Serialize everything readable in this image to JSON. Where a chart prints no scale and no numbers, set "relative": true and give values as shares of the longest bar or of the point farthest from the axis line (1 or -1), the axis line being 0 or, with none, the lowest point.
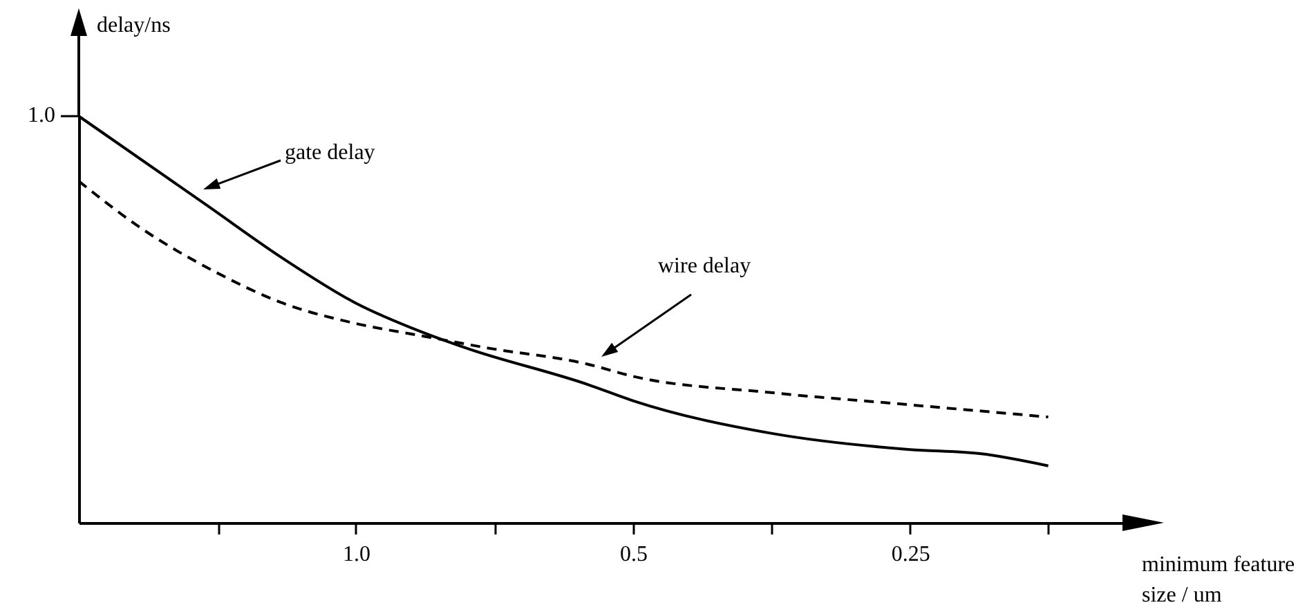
{
  "chart_data": {
    "type": "line",
    "xlabel": "minimum feature size / um",
    "ylabel": "delay/ns",
    "log": "x",
    "relative": true,
    "xlim": [
      2.0,
      0.146
    ],
    "xticks": [
      {
        "value": 1.41,
        "label": null
      },
      {
        "value": 1,
        "label": "1.0"
      },
      {
        "value": 0.707,
        "label": null
      },
      0.5,
      {
        "value": 0.354,
        "label": null
      },
      0.25,
      {
        "value": 0.177,
        "label": null
      }
    ],
    "series": [
      {
        "color": "#000000",
        "line_style": "solid",
        "x": [
          2.0,
          1.45,
          1.2,
          1.0,
          0.85,
          0.76,
          0.56,
          0.5,
          0.354,
          0.25,
          0.21,
          0.177
        ],
        "values": [
          1.0,
          0.78,
          0.65,
          0.54,
          0.47,
          0.43,
          0.34,
          0.3,
          0.22,
          0.18,
          0.17,
          0.14
        ]
      },
      {
        "color": "#000000",
        "line_style": "dashed",
        "x": [
          2.0,
          1.7,
          1.43,
          1.2,
          1.0,
          0.85,
          0.72,
          0.56,
          0.5,
          0.354,
          0.25,
          0.177
        ],
        "values": [
          0.84,
          0.72,
          0.62,
          0.54,
          0.49,
          0.46,
          0.43,
          0.39,
          0.36,
          0.32,
          0.29,
          0.26
        ]
      }
    ],
    "annotations": [
      "gate delay",
      "wire delay",
      "1.0"
    ],
    "grid": false
  }
}
